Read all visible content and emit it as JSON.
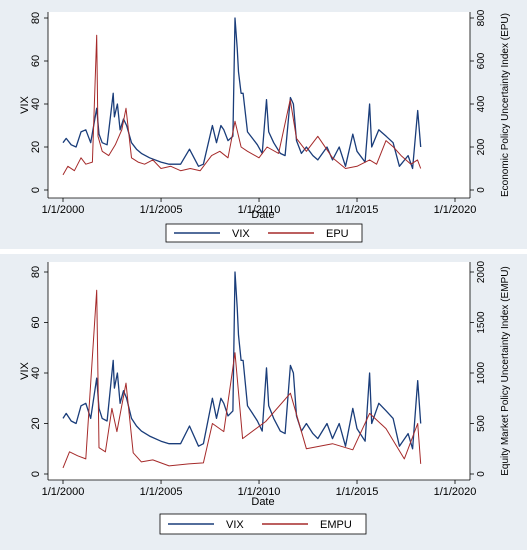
{
  "colors": {
    "vix": "#1a3d7a",
    "other": "#a52a2a",
    "panel_bg": "#e9eef3",
    "plot_bg": "#ffffff",
    "grid": "#dde4ea"
  },
  "chart_data": [
    {
      "type": "line",
      "xlabel": "Date",
      "ylabel": "VIX",
      "y2label": "Economic Policy Uncertainty Index (EPU)",
      "xlim": [
        "2000-01-01",
        "2020-01-01"
      ],
      "xticks": [
        "1/1/2000",
        "1/1/2005",
        "1/1/2010",
        "1/1/2015",
        "1/1/2020"
      ],
      "ylim": [
        0,
        80
      ],
      "yticks": [
        "0",
        "20",
        "40",
        "60",
        "80"
      ],
      "y2lim": [
        0,
        800
      ],
      "y2ticks": [
        "0",
        "200",
        "400",
        "600",
        "800"
      ],
      "grid": true,
      "legend_position": "bottom",
      "series": [
        {
          "name": "VIX",
          "axis": "left",
          "x": [
            "2000-01-01",
            "2000-03-01",
            "2000-06-01",
            "2000-09-01",
            "2000-12-01",
            "2001-03-01",
            "2001-06-01",
            "2001-09-20",
            "2001-11-01",
            "2002-01-01",
            "2002-04-01",
            "2002-07-24",
            "2002-08-15",
            "2002-10-10",
            "2002-12-01",
            "2003-02-01",
            "2003-04-01",
            "2003-07-01",
            "2003-10-01",
            "2004-01-01",
            "2004-06-01",
            "2005-01-01",
            "2005-06-01",
            "2006-01-01",
            "2006-06-15",
            "2006-12-01",
            "2007-03-01",
            "2007-08-16",
            "2007-11-01",
            "2008-01-22",
            "2008-03-15",
            "2008-06-01",
            "2008-09-01",
            "2008-10-10",
            "2008-11-20",
            "2008-12-15",
            "2009-02-01",
            "2009-03-10",
            "2009-06-01",
            "2009-09-01",
            "2009-12-01",
            "2010-03-01",
            "2010-05-20",
            "2010-07-01",
            "2010-10-01",
            "2011-02-01",
            "2011-05-01",
            "2011-08-08",
            "2011-10-03",
            "2011-12-01",
            "2012-03-01",
            "2012-06-01",
            "2012-10-01",
            "2013-01-01",
            "2013-06-20",
            "2013-10-01",
            "2014-02-03",
            "2014-06-01",
            "2014-10-15",
            "2015-01-01",
            "2015-06-01",
            "2015-08-24",
            "2015-10-01",
            "2016-02-11",
            "2016-06-27",
            "2016-11-04",
            "2017-03-01",
            "2017-08-10",
            "2017-11-01",
            "2018-02-05",
            "2018-04-01"
          ],
          "values": [
            22,
            24,
            21,
            20,
            27,
            28,
            22,
            38,
            26,
            22,
            21,
            45,
            34,
            40,
            28,
            33,
            30,
            22,
            19,
            17,
            15,
            13,
            12,
            12,
            19,
            11,
            12,
            30,
            22,
            30,
            28,
            23,
            25,
            80,
            66,
            55,
            45,
            45,
            27,
            24,
            21,
            17,
            42,
            27,
            22,
            17,
            16,
            43,
            40,
            23,
            17,
            20,
            16,
            14,
            20,
            14,
            20,
            11,
            26,
            18,
            13,
            40,
            20,
            28,
            25,
            22,
            11,
            16,
            10,
            37,
            20
          ]
        },
        {
          "name": "EPU",
          "axis": "right",
          "x": [
            "2000-01-01",
            "2000-04-01",
            "2000-08-01",
            "2000-12-01",
            "2001-03-01",
            "2001-07-01",
            "2001-09-20",
            "2001-10-15",
            "2002-01-01",
            "2002-05-01",
            "2002-09-01",
            "2003-01-01",
            "2003-03-20",
            "2003-07-01",
            "2003-11-01",
            "2004-03-01",
            "2004-08-01",
            "2005-01-01",
            "2005-07-01",
            "2006-01-01",
            "2006-07-01",
            "2007-01-01",
            "2007-08-01",
            "2008-01-01",
            "2008-06-01",
            "2008-10-10",
            "2009-02-01",
            "2009-06-01",
            "2010-01-01",
            "2010-06-01",
            "2011-01-01",
            "2011-08-05",
            "2011-12-01",
            "2012-06-01",
            "2012-12-31",
            "2013-10-01",
            "2014-06-01",
            "2015-01-01",
            "2015-08-24",
            "2016-01-01",
            "2016-06-24",
            "2016-11-09",
            "2017-04-01",
            "2017-10-01",
            "2018-02-01",
            "2018-04-01"
          ],
          "values": [
            70,
            110,
            90,
            150,
            120,
            130,
            720,
            250,
            180,
            160,
            210,
            280,
            380,
            150,
            130,
            120,
            140,
            100,
            110,
            90,
            100,
            90,
            160,
            180,
            150,
            320,
            200,
            180,
            150,
            200,
            170,
            420,
            240,
            180,
            250,
            150,
            100,
            110,
            140,
            120,
            230,
            200,
            160,
            120,
            140,
            100
          ]
        }
      ]
    },
    {
      "type": "line",
      "xlabel": "Date",
      "ylabel": "VIX",
      "y2label": "Equity Market Policy Uncertainty Index (EMPU)",
      "xlim": [
        "2000-01-01",
        "2020-01-01"
      ],
      "xticks": [
        "1/1/2000",
        "1/1/2005",
        "1/1/2010",
        "1/1/2015",
        "1/1/2020"
      ],
      "ylim": [
        0,
        80
      ],
      "yticks": [
        "0",
        "20",
        "40",
        "60",
        "80"
      ],
      "y2lim": [
        0,
        2000
      ],
      "y2ticks": [
        "0",
        "500",
        "1000",
        "1500",
        "2000"
      ],
      "grid": true,
      "legend_position": "bottom",
      "series": [
        {
          "name": "VIX",
          "axis": "left",
          "x": [
            "2000-01-01",
            "2000-03-01",
            "2000-06-01",
            "2000-09-01",
            "2000-12-01",
            "2001-03-01",
            "2001-06-01",
            "2001-09-20",
            "2001-11-01",
            "2002-01-01",
            "2002-04-01",
            "2002-07-24",
            "2002-08-15",
            "2002-10-10",
            "2002-12-01",
            "2003-02-01",
            "2003-04-01",
            "2003-07-01",
            "2003-10-01",
            "2004-01-01",
            "2004-06-01",
            "2005-01-01",
            "2005-06-01",
            "2006-01-01",
            "2006-06-15",
            "2006-12-01",
            "2007-03-01",
            "2007-08-16",
            "2007-11-01",
            "2008-01-22",
            "2008-03-15",
            "2008-06-01",
            "2008-09-01",
            "2008-10-10",
            "2008-11-20",
            "2008-12-15",
            "2009-02-01",
            "2009-03-10",
            "2009-06-01",
            "2009-09-01",
            "2009-12-01",
            "2010-03-01",
            "2010-05-20",
            "2010-07-01",
            "2010-10-01",
            "2011-02-01",
            "2011-05-01",
            "2011-08-08",
            "2011-10-03",
            "2011-12-01",
            "2012-03-01",
            "2012-06-01",
            "2012-10-01",
            "2013-01-01",
            "2013-06-20",
            "2013-10-01",
            "2014-02-03",
            "2014-06-01",
            "2014-10-15",
            "2015-01-01",
            "2015-06-01",
            "2015-08-24",
            "2015-10-01",
            "2016-02-11",
            "2016-06-27",
            "2016-11-04",
            "2017-03-01",
            "2017-08-10",
            "2017-11-01",
            "2018-02-05",
            "2018-04-01"
          ],
          "values": [
            22,
            24,
            21,
            20,
            27,
            28,
            22,
            38,
            26,
            22,
            21,
            45,
            34,
            40,
            28,
            33,
            30,
            22,
            19,
            17,
            15,
            13,
            12,
            12,
            19,
            11,
            12,
            30,
            22,
            30,
            28,
            23,
            25,
            80,
            66,
            55,
            45,
            45,
            27,
            24,
            21,
            17,
            42,
            27,
            22,
            17,
            16,
            43,
            40,
            23,
            17,
            20,
            16,
            14,
            20,
            14,
            20,
            11,
            26,
            18,
            13,
            40,
            20,
            28,
            25,
            22,
            11,
            16,
            10,
            37,
            20
          ]
        },
        {
          "name": "EMPU",
          "axis": "right",
          "x": [
            "2000-01-01",
            "2000-05-01",
            "2000-10-01",
            "2001-03-01",
            "2001-09-20",
            "2001-11-01",
            "2002-03-01",
            "2002-07-01",
            "2002-10-01",
            "2003-03-20",
            "2003-08-01",
            "2004-01-01",
            "2004-08-01",
            "2005-06-01",
            "2006-06-01",
            "2007-03-01",
            "2007-08-16",
            "2008-03-15",
            "2008-10-10",
            "2009-03-01",
            "2010-05-06",
            "2011-08-08",
            "2012-06-01",
            "2013-10-01",
            "2014-10-15",
            "2015-08-24",
            "2016-06-24",
            "2017-06-01",
            "2018-02-05",
            "2018-04-01"
          ],
          "values": [
            60,
            220,
            180,
            150,
            1820,
            260,
            220,
            650,
            420,
            900,
            210,
            120,
            140,
            80,
            100,
            110,
            500,
            420,
            1200,
            350,
            520,
            800,
            250,
            300,
            240,
            600,
            450,
            150,
            500,
            100
          ]
        }
      ]
    }
  ],
  "legend": [
    {
      "items": [
        "VIX",
        "EPU"
      ]
    },
    {
      "items": [
        "VIX",
        "EMPU"
      ]
    }
  ]
}
